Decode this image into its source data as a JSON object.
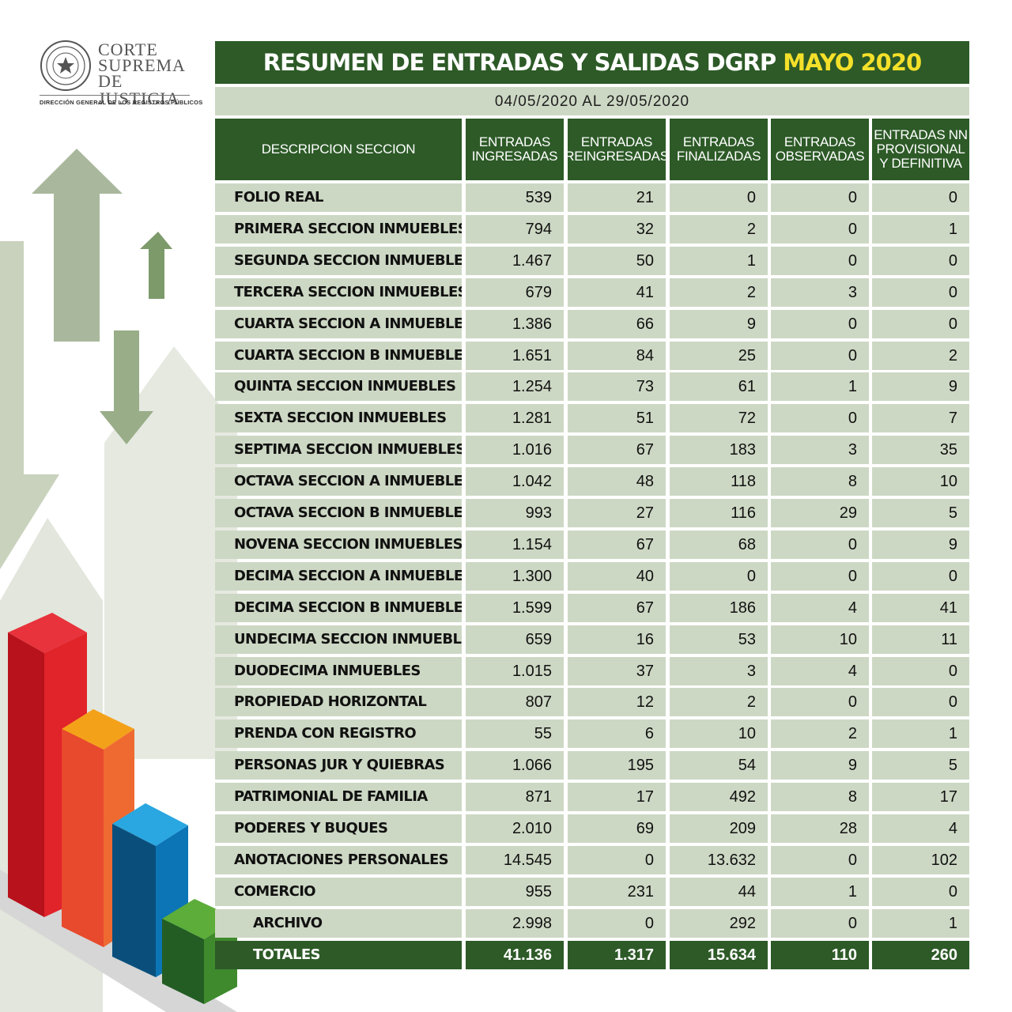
{
  "logo": {
    "line1": "CORTE",
    "line2": "SUPREMA",
    "line3": "DE JUSTICIA",
    "subtitle": "DIRECCIÓN GENERAL DE LOS REGISTROS PÚBLICOS"
  },
  "title": {
    "main": "RESUMEN DE ENTRADAS Y SALIDAS DGRP",
    "highlight": "MAYO 2020"
  },
  "date_range": "04/05/2020 AL 29/05/2020",
  "chart_data": {
    "type": "table",
    "columns": [
      "DESCRIPCION SECCION",
      "ENTRADAS INGRESADAS",
      "ENTRADAS REINGRESADAS",
      "ENTRADAS FINALIZADAS",
      "ENTRADAS OBSERVADAS",
      "ENTRADAS NN PROVISIONAL Y DEFINITIVA"
    ],
    "rows": [
      {
        "name": "FOLIO REAL",
        "values": [
          "539",
          "21",
          "0",
          "0",
          "0"
        ]
      },
      {
        "name": "PRIMERA SECCION INMUEBLES",
        "values": [
          "794",
          "32",
          "2",
          "0",
          "1"
        ]
      },
      {
        "name": "SEGUNDA SECCION INMUEBLES",
        "values": [
          "1.467",
          "50",
          "1",
          "0",
          "0"
        ]
      },
      {
        "name": "TERCERA SECCION INMUEBLES",
        "values": [
          "679",
          "41",
          "2",
          "3",
          "0"
        ]
      },
      {
        "name": "CUARTA SECCION A INMUEBLES",
        "values": [
          "1.386",
          "66",
          "9",
          "0",
          "0"
        ]
      },
      {
        "name": "CUARTA SECCION B INMUEBLES",
        "values": [
          "1.651",
          "84",
          "25",
          "0",
          "2"
        ]
      },
      {
        "name": "QUINTA SECCION INMUEBLES",
        "values": [
          "1.254",
          "73",
          "61",
          "1",
          "9"
        ]
      },
      {
        "name": "SEXTA SECCION INMUEBLES",
        "values": [
          "1.281",
          "51",
          "72",
          "0",
          "7"
        ]
      },
      {
        "name": "SEPTIMA SECCION INMUEBLES",
        "values": [
          "1.016",
          "67",
          "183",
          "3",
          "35"
        ]
      },
      {
        "name": "OCTAVA SECCION A INMUEBLES",
        "values": [
          "1.042",
          "48",
          "118",
          "8",
          "10"
        ]
      },
      {
        "name": "OCTAVA SECCION B INMUEBLES",
        "values": [
          "993",
          "27",
          "116",
          "29",
          "5"
        ]
      },
      {
        "name": "NOVENA SECCION INMUEBLES",
        "values": [
          "1.154",
          "67",
          "68",
          "0",
          "9"
        ]
      },
      {
        "name": "DECIMA SECCION A INMUEBLES",
        "values": [
          "1.300",
          "40",
          "0",
          "0",
          "0"
        ]
      },
      {
        "name": "DECIMA SECCION B INMUEBLES",
        "values": [
          "1.599",
          "67",
          "186",
          "4",
          "41"
        ]
      },
      {
        "name": "UNDECIMA SECCION INMUEBLES",
        "values": [
          "659",
          "16",
          "53",
          "10",
          "11"
        ]
      },
      {
        "name": "DUODECIMA INMUEBLES",
        "values": [
          "1.015",
          "37",
          "3",
          "4",
          "0"
        ]
      },
      {
        "name": "PROPIEDAD HORIZONTAL",
        "values": [
          "807",
          "12",
          "2",
          "0",
          "0"
        ]
      },
      {
        "name": "PRENDA CON REGISTRO",
        "values": [
          "55",
          "6",
          "10",
          "2",
          "1"
        ]
      },
      {
        "name": "PERSONAS JUR Y QUIEBRAS",
        "values": [
          "1.066",
          "195",
          "54",
          "9",
          "5"
        ]
      },
      {
        "name": "PATRIMONIAL DE FAMILIA",
        "values": [
          "871",
          "17",
          "492",
          "8",
          "17"
        ]
      },
      {
        "name": "PODERES Y BUQUES",
        "values": [
          "2.010",
          "69",
          "209",
          "28",
          "4"
        ]
      },
      {
        "name": "ANOTACIONES PERSONALES",
        "values": [
          "14.545",
          "0",
          "13.632",
          "0",
          "102"
        ]
      },
      {
        "name": "COMERCIO",
        "values": [
          "955",
          "231",
          "44",
          "1",
          "0"
        ]
      },
      {
        "name": "ARCHIVO",
        "values": [
          "2.998",
          "0",
          "292",
          "0",
          "1"
        ],
        "indent": true
      }
    ],
    "totals": {
      "name": "TOTALES",
      "values": [
        "41.136",
        "1.317",
        "15.634",
        "110",
        "260"
      ]
    }
  },
  "colors": {
    "header_green": "#2d5a27",
    "cell_gray_green": "#cdd8c4",
    "title_accent": "#f5e02a"
  }
}
